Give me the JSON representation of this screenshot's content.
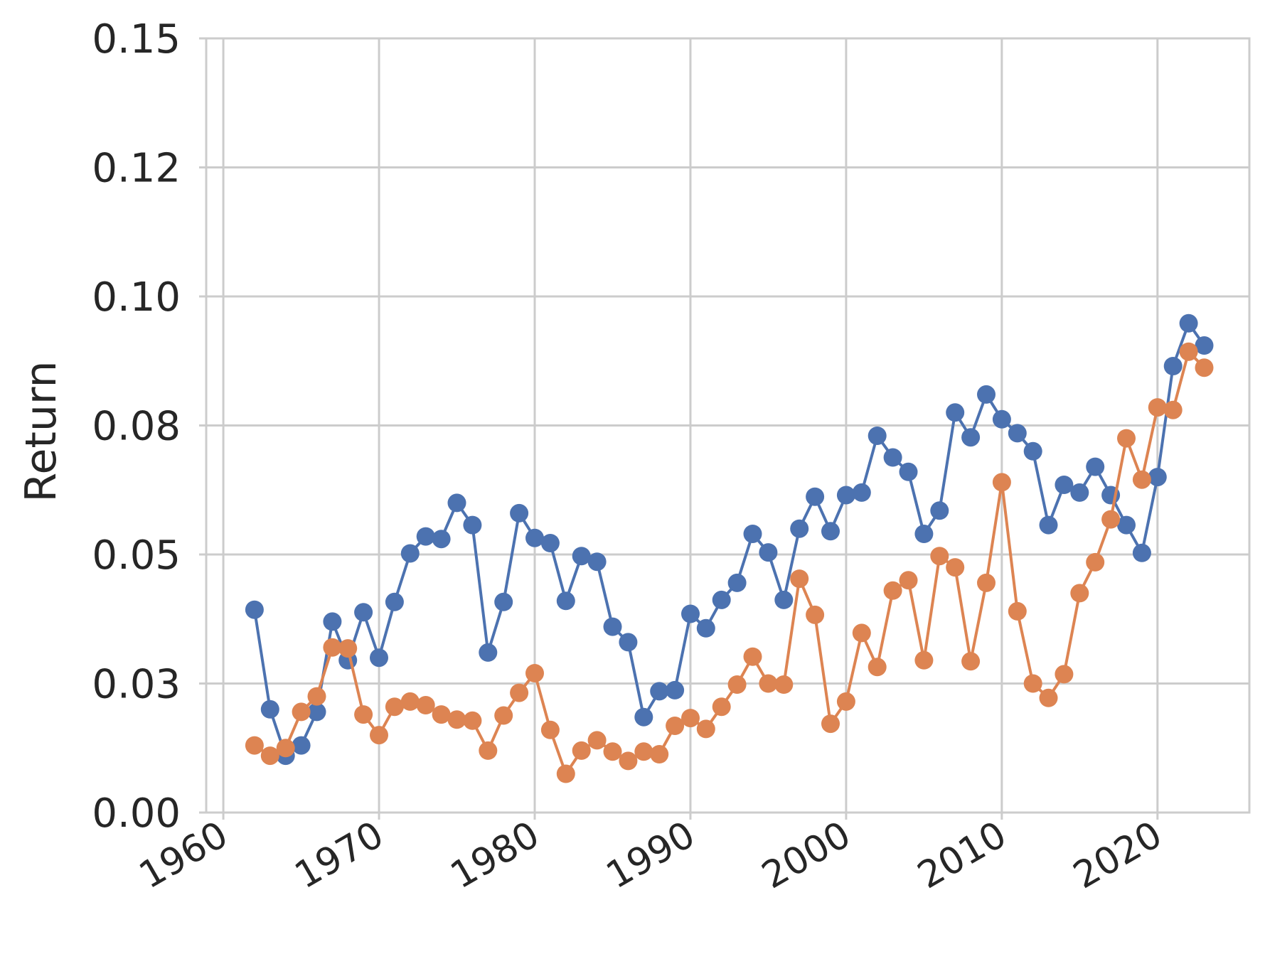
{
  "chart_data": {
    "type": "line",
    "title": "",
    "xlabel": "",
    "ylabel": "Return",
    "xlim": [
      1958.9,
      2025.9
    ],
    "ylim": [
      0.0,
      0.15
    ],
    "grid": true,
    "legend": "none",
    "x_ticks": [
      1960,
      1970,
      1980,
      1990,
      2000,
      2010,
      2020
    ],
    "y_ticks": [
      0.0,
      0.025,
      0.05,
      0.075,
      0.1,
      0.125,
      0.15
    ],
    "x_tick_labels": [
      "1960",
      "1970",
      "1980",
      "1990",
      "2000",
      "2010",
      "2020"
    ],
    "y_tick_labels": [
      "0.00",
      "0.03",
      "0.05",
      "0.08",
      "0.10",
      "0.12",
      "0.15"
    ],
    "x": [
      1962,
      1963,
      1964,
      1965,
      1966,
      1967,
      1968,
      1969,
      1970,
      1971,
      1972,
      1973,
      1974,
      1975,
      1976,
      1977,
      1978,
      1979,
      1980,
      1981,
      1982,
      1983,
      1984,
      1985,
      1986,
      1987,
      1988,
      1989,
      1990,
      1991,
      1992,
      1993,
      1994,
      1995,
      1996,
      1997,
      1998,
      1999,
      2000,
      2001,
      2002,
      2003,
      2004,
      2005,
      2006,
      2007,
      2008,
      2009,
      2010,
      2011,
      2012,
      2013,
      2014,
      2015,
      2016,
      2017,
      2018,
      2019,
      2020,
      2021,
      2022,
      2023
    ],
    "series": [
      {
        "color": "#4c72b0",
        "values": [
          0.0393,
          0.02,
          0.011,
          0.013,
          0.0195,
          0.037,
          0.0295,
          0.0388,
          0.03,
          0.0408,
          0.0502,
          0.0535,
          0.053,
          0.06,
          0.0557,
          0.031,
          0.0408,
          0.058,
          0.0532,
          0.0522,
          0.041,
          0.0497,
          0.0486,
          0.036,
          0.033,
          0.0185,
          0.0235,
          0.0237,
          0.0385,
          0.0357,
          0.0412,
          0.0445,
          0.054,
          0.0504,
          0.0412,
          0.055,
          0.0612,
          0.0545,
          0.0615,
          0.062,
          0.073,
          0.0688,
          0.066,
          0.054,
          0.0585,
          0.0775,
          0.0727,
          0.081,
          0.0762,
          0.0735,
          0.07,
          0.0557,
          0.0635,
          0.062,
          0.067,
          0.0615,
          0.0557,
          0.0503,
          0.065,
          0.0865,
          0.0948,
          0.0905
        ]
      },
      {
        "color": "#dd8452",
        "values": [
          0.013,
          0.011,
          0.0125,
          0.0195,
          0.0225,
          0.032,
          0.0318,
          0.019,
          0.015,
          0.0205,
          0.0215,
          0.0208,
          0.019,
          0.018,
          0.0178,
          0.012,
          0.0188,
          0.0232,
          0.027,
          0.016,
          0.0075,
          0.012,
          0.014,
          0.0118,
          0.01,
          0.0118,
          0.0113,
          0.0168,
          0.0183,
          0.0162,
          0.0205,
          0.0248,
          0.0302,
          0.025,
          0.0248,
          0.0453,
          0.0383,
          0.0172,
          0.0215,
          0.0348,
          0.0282,
          0.043,
          0.045,
          0.0295,
          0.0497,
          0.0475,
          0.0293,
          0.0445,
          0.064,
          0.039,
          0.025,
          0.0222,
          0.0268,
          0.0425,
          0.0485,
          0.0568,
          0.0725,
          0.0645,
          0.0785,
          0.078,
          0.0893,
          0.0862
        ]
      }
    ]
  }
}
